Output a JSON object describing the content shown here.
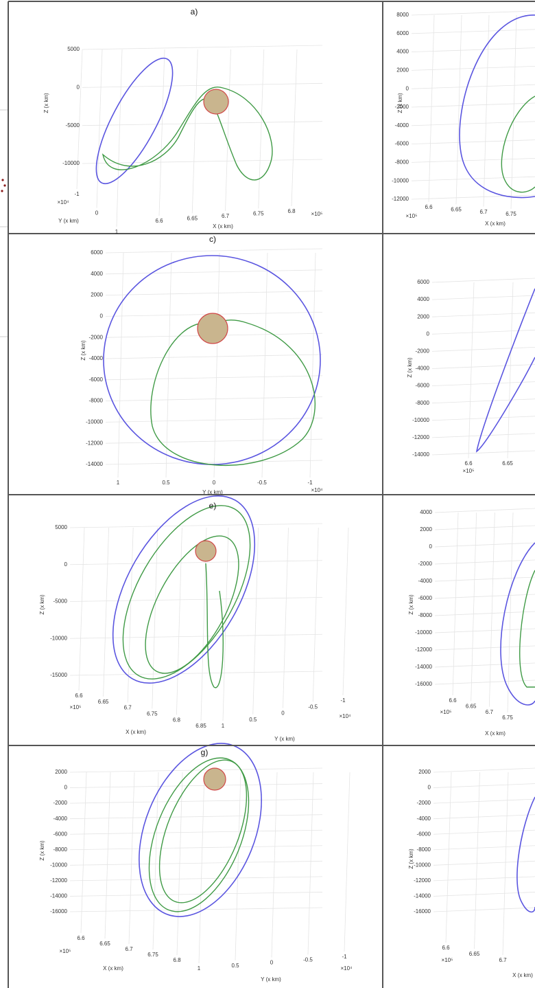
{
  "figure": {
    "panels": [
      {
        "label": "a)",
        "z_axis": {
          "label": "Z (x km)",
          "ticks": [
            "5000",
            "0",
            "-5000",
            "-10000"
          ]
        },
        "x_axis": {
          "label": "X (x km)",
          "ticks": [
            "6.6",
            "6.65",
            "6.7",
            "6.75",
            "6.8"
          ],
          "multiplier": "×10⁵"
        },
        "y_axis": {
          "label": "Y (x km)",
          "ticks": [
            "-1",
            "0",
            "1"
          ],
          "multiplier": "×10⁴"
        }
      },
      {
        "z_axis": {
          "label": "Z (x km)",
          "ticks": [
            "8000",
            "6000",
            "4000",
            "2000",
            "0",
            "-2000",
            "-4000",
            "-6000",
            "-8000",
            "-10000",
            "-12000"
          ]
        },
        "x_axis": {
          "label": "X (x km)",
          "ticks": [
            "6.6",
            "6.65",
            "6.7",
            "6.75"
          ],
          "multiplier": "×10⁵"
        }
      },
      {
        "label": "c)",
        "z_axis": {
          "label": "Z (x km)",
          "ticks": [
            "6000",
            "4000",
            "2000",
            "0",
            "-2000",
            "-4000",
            "-6000",
            "-8000",
            "-10000",
            "-12000",
            "-14000"
          ]
        },
        "y_axis": {
          "label": "Y (x km)",
          "ticks": [
            "1",
            "0.5",
            "0",
            "-0.5",
            "-1"
          ],
          "multiplier": "×10⁴"
        }
      },
      {
        "z_axis": {
          "label": "Z (x km)",
          "ticks": [
            "6000",
            "4000",
            "2000",
            "0",
            "-2000",
            "-4000",
            "-6000",
            "-8000",
            "-10000",
            "-12000",
            "-14000"
          ]
        },
        "x_axis": {
          "ticks": [
            "6.6",
            "6.65"
          ],
          "multiplier": "×10⁵"
        }
      },
      {
        "label": "e)",
        "z_axis": {
          "label": "Z (x km)",
          "ticks": [
            "5000",
            "0",
            "-5000",
            "-10000",
            "-15000"
          ]
        },
        "x_axis": {
          "label": "X (x km)",
          "ticks": [
            "6.6",
            "6.65",
            "6.7",
            "6.75",
            "6.8",
            "6.85"
          ],
          "multiplier": "×10⁵"
        },
        "y_axis": {
          "label": "Y (x km)",
          "ticks": [
            "1",
            "0.5",
            "0",
            "-0.5",
            "-1"
          ],
          "multiplier": "×10⁴"
        }
      },
      {
        "z_axis": {
          "label": "Z (x km)",
          "ticks": [
            "4000",
            "2000",
            "0",
            "-2000",
            "-4000",
            "-6000",
            "-8000",
            "-10000",
            "-12000",
            "-14000",
            "-16000"
          ]
        },
        "x_axis": {
          "label": "X (x km)",
          "ticks": [
            "6.6",
            "6.65",
            "6.7",
            "6.75"
          ],
          "multiplier": "×10⁵"
        }
      },
      {
        "label": "g)",
        "z_axis": {
          "label": "Z (x km)",
          "ticks": [
            "2000",
            "0",
            "-2000",
            "-4000",
            "-6000",
            "-8000",
            "-10000",
            "-12000",
            "-14000",
            "-16000"
          ]
        },
        "x_axis": {
          "label": "X (x km)",
          "ticks": [
            "6.6",
            "6.65",
            "6.7",
            "6.75",
            "6.8"
          ],
          "multiplier": "×10⁵"
        },
        "y_axis": {
          "label": "Y (x km)",
          "ticks": [
            "1",
            "0.5",
            "0",
            "-0.5",
            "-1"
          ],
          "multiplier": "×10⁴"
        }
      },
      {
        "z_axis": {
          "label": "Z (x km)",
          "ticks": [
            "2000",
            "0",
            "-2000",
            "-4000",
            "-6000",
            "-8000",
            "-10000",
            "-12000",
            "-14000",
            "-16000"
          ]
        },
        "x_axis": {
          "label": "X (x km)",
          "ticks": [
            "6.6",
            "6.65",
            "6.7"
          ],
          "multiplier": "×10⁵"
        }
      }
    ]
  }
}
